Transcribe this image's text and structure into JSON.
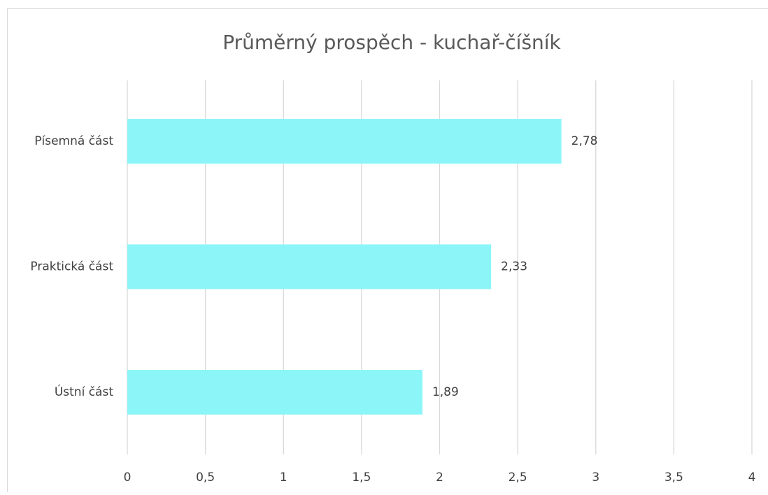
{
  "chart_data": {
    "type": "barh",
    "title": "Průměrný prospěch - kuchař-číšník",
    "categories": [
      "Písemná část",
      "Praktická část",
      "Ústní část"
    ],
    "values": [
      2.78,
      2.33,
      1.89
    ],
    "value_labels": [
      "2,78",
      "2,33",
      "1,89"
    ],
    "color": "#8cf5f8",
    "xlim": [
      0,
      4
    ],
    "xticks": [
      0,
      {
        "value": 0.5,
        "label": "0,5"
      },
      1,
      {
        "value": 1.5,
        "label": "1,5"
      },
      2,
      {
        "value": 2.5,
        "label": "2,5"
      },
      3,
      {
        "value": 3.5,
        "label": "3,5"
      },
      4
    ],
    "grid": true
  }
}
